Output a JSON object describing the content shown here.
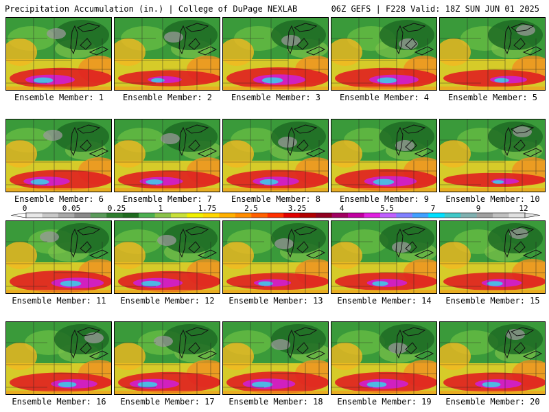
{
  "header": {
    "title": "Precipitation Accumulation (in.) | College of DuPage NEXLAB",
    "run_info": "06Z GEFS | F228 Valid: 18Z SUN JUN 01 2025"
  },
  "member_label_prefix": "Ensemble Member: ",
  "members": [
    {
      "id": 1,
      "label": "Ensemble Member: 1",
      "intensity": 0.8
    },
    {
      "id": 2,
      "label": "Ensemble Member: 2",
      "intensity": 0.55
    },
    {
      "id": 3,
      "label": "Ensemble Member: 3",
      "intensity": 0.85
    },
    {
      "id": 4,
      "label": "Ensemble Member: 4",
      "intensity": 0.8
    },
    {
      "id": 5,
      "label": "Ensemble Member: 5",
      "intensity": 0.6
    },
    {
      "id": 6,
      "label": "Ensemble Member: 6",
      "intensity": 0.75
    },
    {
      "id": 7,
      "label": "Ensemble Member: 7",
      "intensity": 0.7
    },
    {
      "id": 8,
      "label": "Ensemble Member: 8",
      "intensity": 0.75
    },
    {
      "id": 9,
      "label": "Ensemble Member: 9",
      "intensity": 0.85
    },
    {
      "id": 10,
      "label": "Ensemble Member: 10",
      "intensity": 0.45
    },
    {
      "id": 11,
      "label": "Ensemble Member: 11",
      "intensity": 0.85
    },
    {
      "id": 12,
      "label": "Ensemble Member: 12",
      "intensity": 0.8
    },
    {
      "id": 13,
      "label": "Ensemble Member: 13",
      "intensity": 0.6
    },
    {
      "id": 14,
      "label": "Ensemble Member: 14",
      "intensity": 0.65
    },
    {
      "id": 15,
      "label": "Ensemble Member: 15",
      "intensity": 0.65
    },
    {
      "id": 16,
      "label": "Ensemble Member: 16",
      "intensity": 0.75
    },
    {
      "id": 17,
      "label": "Ensemble Member: 17",
      "intensity": 0.8
    },
    {
      "id": 18,
      "label": "Ensemble Member: 18",
      "intensity": 0.85
    },
    {
      "id": 19,
      "label": "Ensemble Member: 19",
      "intensity": 0.8
    },
    {
      "id": 20,
      "label": "Ensemble Member: 20",
      "intensity": 0.75
    }
  ],
  "colorbar": {
    "labels": [
      "0",
      "0.05",
      "0.25",
      "1",
      "1.75",
      "2.5",
      "3.25",
      "4",
      "5.5",
      "7",
      "9",
      "12"
    ],
    "colors": [
      "#e8e8e8",
      "#c8c8c8",
      "#a8a8a8",
      "#888888",
      "#5a9a5a",
      "#2e7d2e",
      "#1e6a1e",
      "#4caf50",
      "#8bc34a",
      "#c8e03a",
      "#f0f000",
      "#ffd700",
      "#ffb000",
      "#ff8c00",
      "#ff6000",
      "#ff3000",
      "#e00000",
      "#b00000",
      "#900020",
      "#a00060",
      "#c000a0",
      "#e020e0",
      "#c060ff",
      "#8080ff",
      "#40a0ff",
      "#00e0ff",
      "#40c8c8",
      "#80b0b0",
      "#a0a0a0",
      "#c0c0c0",
      "#e0e0e0"
    ]
  }
}
